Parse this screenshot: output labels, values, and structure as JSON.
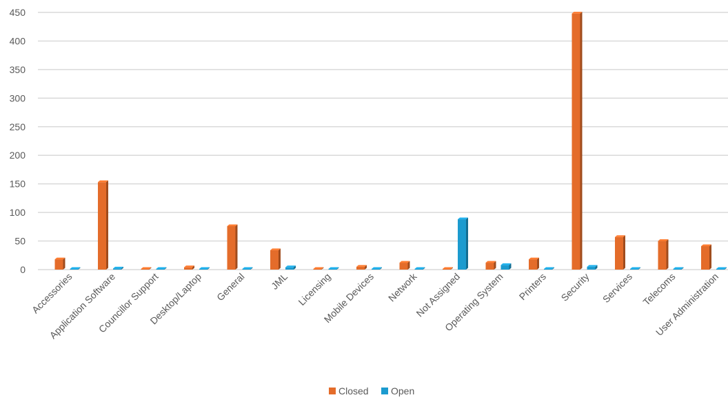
{
  "chart_data": {
    "type": "bar",
    "categories": [
      "Accessories",
      "Application Software",
      "Councillor Support",
      "Desktop/Laptop",
      "General",
      "JML",
      "Licensing",
      "Mobile Devices",
      "Network",
      "Not Assigned",
      "Operating System",
      "Printers",
      "Security",
      "Services",
      "Telecoms",
      "User Administration"
    ],
    "series": [
      {
        "name": "Closed",
        "color": "#E46C2A",
        "values": [
          18,
          153,
          1,
          4,
          76,
          34,
          1,
          5,
          12,
          0,
          12,
          18,
          448,
          57,
          50,
          41
        ]
      },
      {
        "name": "Open",
        "color": "#1C9BCF",
        "values": [
          0,
          2,
          0,
          1,
          0,
          4,
          0,
          0,
          0,
          88,
          8,
          0,
          5,
          0,
          0,
          1
        ]
      }
    ],
    "y_ticks": [
      "0",
      "50",
      "100",
      "150",
      "200",
      "250",
      "300",
      "350",
      "400",
      "450"
    ],
    "ylim": [
      0,
      450
    ],
    "grid": true,
    "legend_position": "bottom"
  }
}
